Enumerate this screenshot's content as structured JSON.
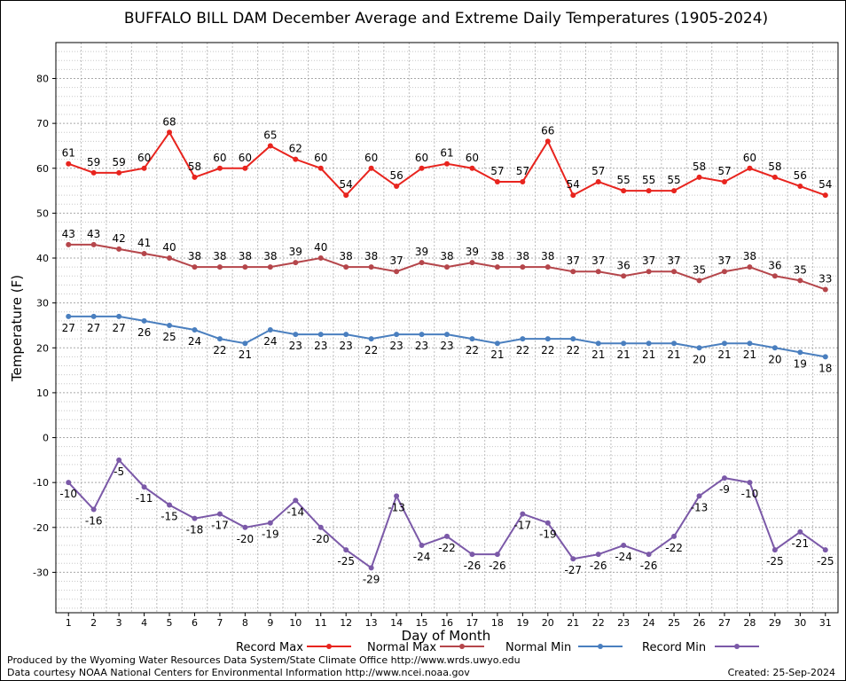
{
  "chart_data": {
    "type": "line",
    "title": "BUFFALO BILL DAM December Average and Extreme Daily Temperatures (1905-2024)",
    "xlabel": "Day of Month",
    "ylabel": "Temperature (F)",
    "ylim": [
      -39,
      88
    ],
    "yticks": [
      -30,
      -20,
      -10,
      0,
      10,
      20,
      30,
      40,
      50,
      60,
      70,
      80
    ],
    "x": [
      1,
      2,
      3,
      4,
      5,
      6,
      7,
      8,
      9,
      10,
      11,
      12,
      13,
      14,
      15,
      16,
      17,
      18,
      19,
      20,
      21,
      22,
      23,
      24,
      25,
      26,
      27,
      28,
      29,
      30,
      31
    ],
    "grid": true,
    "legend_position": "bottom",
    "series": [
      {
        "name": "Record Max",
        "color": "#e8241e",
        "values": [
          61,
          59,
          59,
          60,
          68,
          58,
          60,
          60,
          65,
          62,
          60,
          54,
          60,
          56,
          60,
          61,
          60,
          57,
          57,
          66,
          54,
          57,
          55,
          55,
          55,
          58,
          57,
          60,
          58,
          56,
          54
        ]
      },
      {
        "name": "Normal Max",
        "color": "#b5464b",
        "values": [
          43,
          43,
          42,
          41,
          40,
          38,
          38,
          38,
          38,
          39,
          40,
          38,
          38,
          37,
          39,
          38,
          39,
          38,
          38,
          38,
          37,
          37,
          36,
          37,
          37,
          35,
          37,
          38,
          36,
          35,
          33
        ]
      },
      {
        "name": "Normal Min",
        "color": "#4a7fbf",
        "values": [
          27,
          27,
          27,
          26,
          25,
          24,
          22,
          21,
          24,
          23,
          23,
          23,
          22,
          23,
          23,
          23,
          22,
          21,
          22,
          22,
          22,
          21,
          21,
          21,
          21,
          20,
          21,
          21,
          20,
          19,
          18
        ]
      },
      {
        "name": "Record Min",
        "color": "#7b59a8",
        "values": [
          -10,
          -16,
          -5,
          -11,
          -15,
          -18,
          -17,
          -20,
          -19,
          -14,
          -20,
          -25,
          -29,
          -13,
          -24,
          -22,
          -26,
          -26,
          -17,
          -19,
          -27,
          -26,
          -24,
          -26,
          -22,
          -13,
          -9,
          -10,
          -25,
          -21,
          -25
        ]
      }
    ]
  },
  "footer": {
    "line1": "Produced by the Wyoming Water Resources Data System/State Climate Office http://www.wrds.uwyo.edu",
    "line2": "Data courtesy NOAA National Centers for Environmental Information http://www.ncei.noaa.gov",
    "created": "Created:  25-Sep-2024"
  }
}
